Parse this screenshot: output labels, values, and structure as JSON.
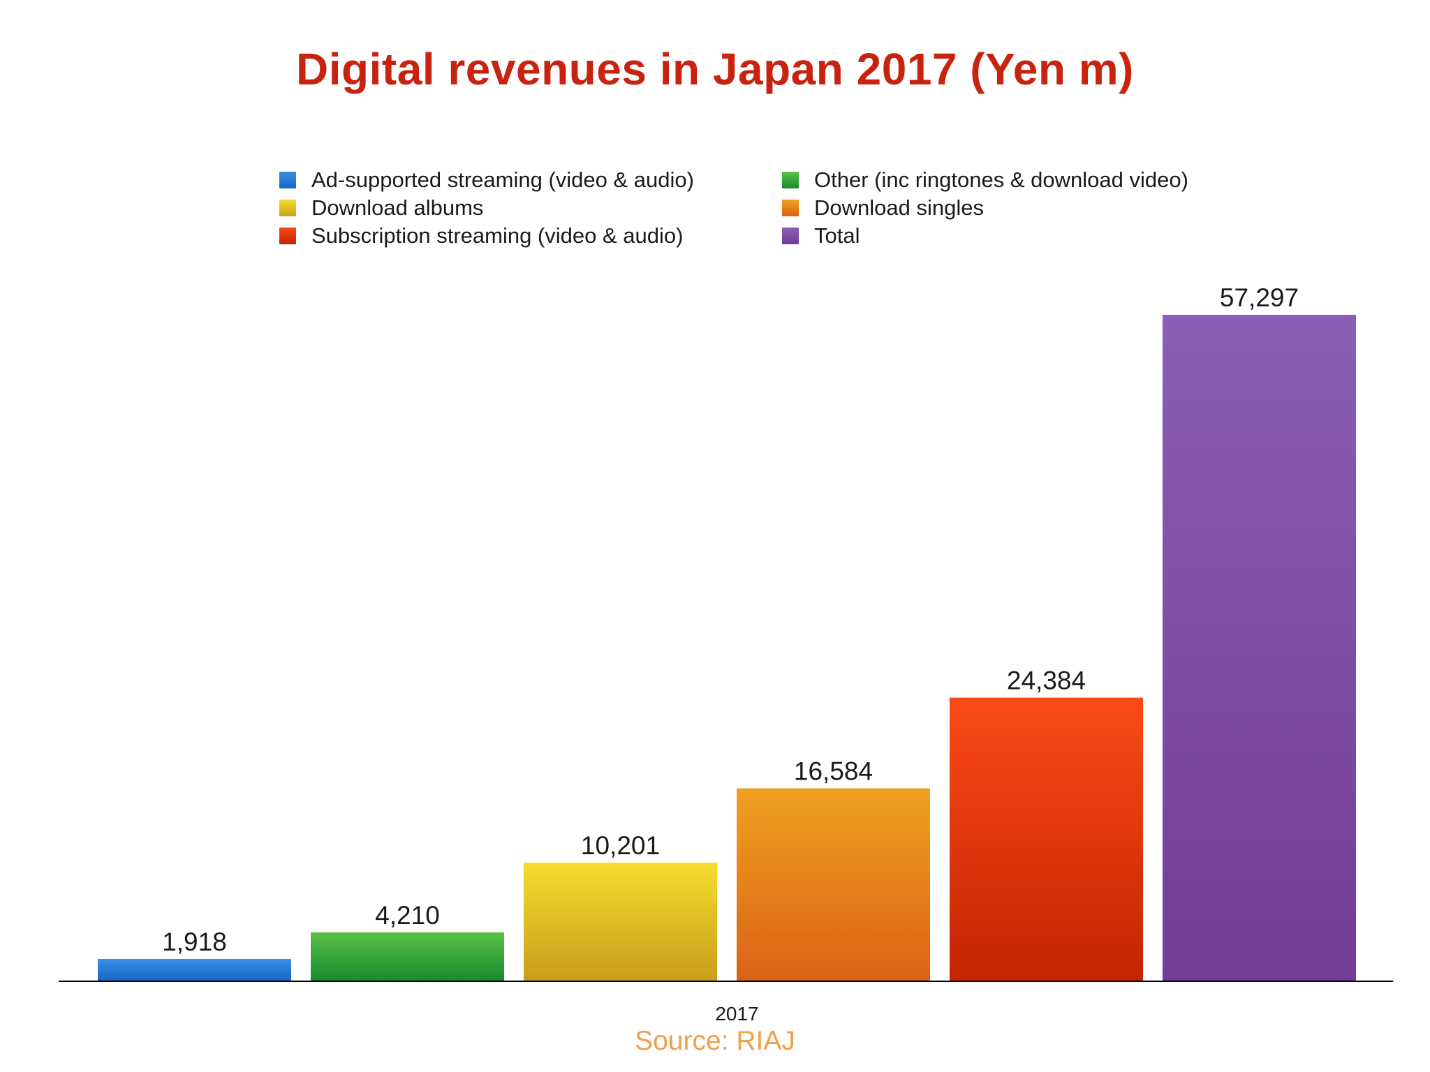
{
  "colors": {
    "title": "#c8230f",
    "source": "#f0a04b",
    "axis": "#000000",
    "value_label": "#1a1a1a",
    "tick_label": "#1a1a1a"
  },
  "chart_data": {
    "type": "bar",
    "title": "Digital revenues in Japan 2017 (Yen m)",
    "categories": [
      "2017"
    ],
    "xlabel": "",
    "ylabel": "",
    "ylim": [
      0,
      60000
    ],
    "grid": false,
    "legend_position": "top",
    "series": [
      {
        "name": "Ad-supported streaming (video & audio)",
        "values": [
          1918
        ],
        "label": "1,918",
        "color_top": "#3a8ee6",
        "color_bottom": "#1566c4"
      },
      {
        "name": "Other (inc ringtones & download video)",
        "values": [
          4210
        ],
        "label": "4,210",
        "color_top": "#5ec04a",
        "color_bottom": "#168a2c"
      },
      {
        "name": "Download albums",
        "values": [
          10201
        ],
        "label": "10,201",
        "color_top": "#f5dc2e",
        "color_bottom": "#c89e1a"
      },
      {
        "name": "Download singles",
        "values": [
          16584
        ],
        "label": "16,584",
        "color_top": "#f0a020",
        "color_bottom": "#db6216"
      },
      {
        "name": "Subscription streaming (video & audio)",
        "values": [
          24384
        ],
        "label": "24,384",
        "color_top": "#fb4a16",
        "color_bottom": "#c42404"
      },
      {
        "name": "Total",
        "values": [
          57297
        ],
        "label": "57,297",
        "color_top": "#8a5eb6",
        "color_bottom": "#733c96"
      }
    ],
    "legend_order": [
      0,
      1,
      2,
      3,
      4,
      5
    ],
    "source": "Source: RIAJ"
  }
}
